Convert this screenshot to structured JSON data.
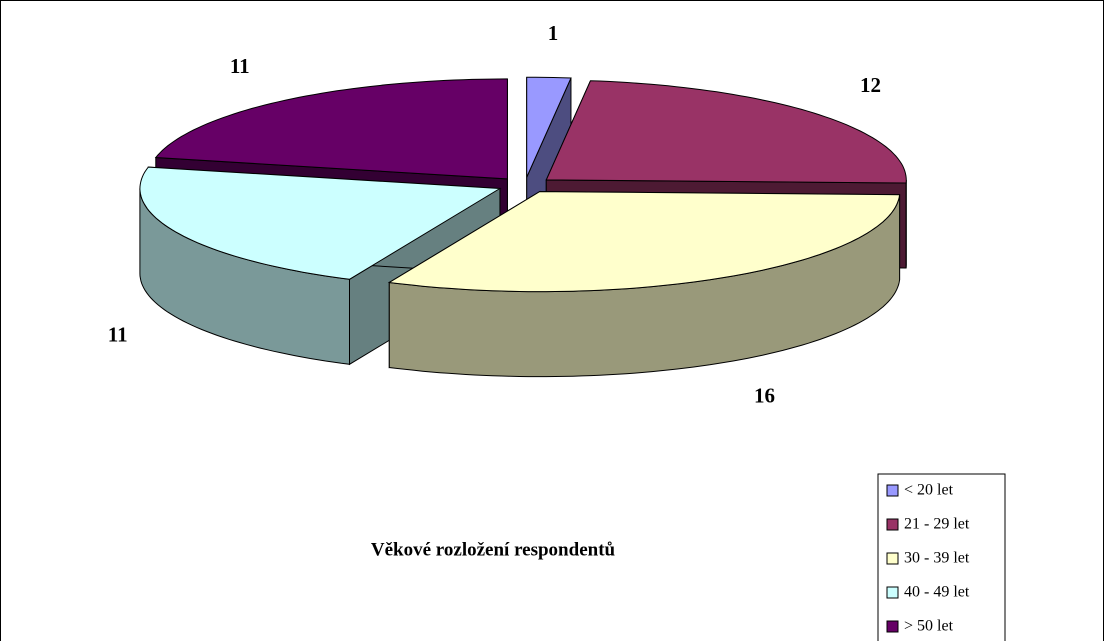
{
  "chart_data": {
    "type": "pie3d",
    "title": "Věkové rozložení respondentů",
    "categories": [
      "< 20 let",
      "21 - 29 let",
      "30 - 39 let",
      "40 - 49 let",
      "> 50 let"
    ],
    "values": [
      1,
      12,
      16,
      11,
      11
    ],
    "colors": [
      "#9999ff",
      "#993366",
      "#ffffcc",
      "#ccffff",
      "#660066"
    ],
    "legend": "bottom-right"
  }
}
